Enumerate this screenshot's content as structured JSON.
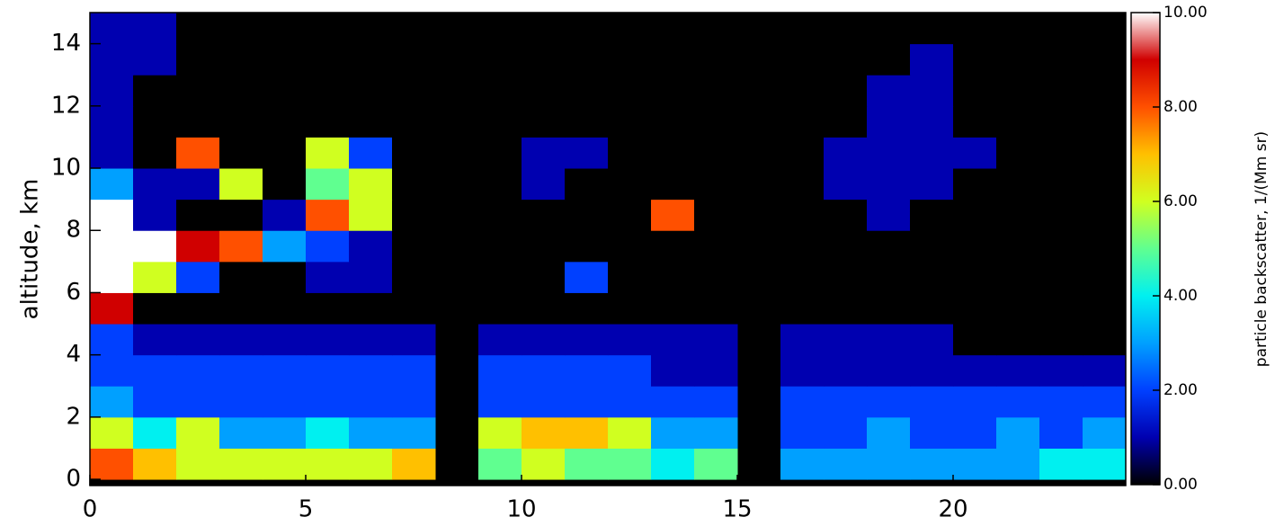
{
  "chart_data": {
    "type": "heatmap",
    "xlabel": null,
    "ylabel": "altitude, km",
    "colorbar_label": "particle backscatter, 1/(Mm sr)",
    "xbins": [
      0,
      1,
      2,
      3,
      4,
      5,
      6,
      7,
      8,
      9,
      10,
      11,
      12,
      13,
      14,
      15,
      16,
      17,
      18,
      19,
      20,
      21,
      22,
      23,
      24
    ],
    "ybins": [
      0,
      1,
      2,
      3,
      4,
      5,
      6,
      7,
      8,
      9,
      10,
      11,
      12,
      13,
      14,
      15
    ],
    "z": [
      [
        8,
        7,
        6,
        6,
        6,
        6,
        6,
        7,
        null,
        5,
        6,
        5,
        5,
        4,
        5,
        null,
        3,
        3,
        3,
        3,
        3,
        3,
        4,
        4
      ],
      [
        6,
        4,
        6,
        3,
        3,
        4,
        3,
        3,
        null,
        6,
        7,
        7,
        6,
        3,
        3,
        null,
        2,
        2,
        3,
        2,
        2,
        3,
        2,
        3
      ],
      [
        3,
        2,
        2,
        2,
        2,
        2,
        2,
        2,
        null,
        2,
        2,
        2,
        2,
        2,
        2,
        null,
        2,
        2,
        2,
        2,
        2,
        2,
        2,
        2
      ],
      [
        2,
        2,
        2,
        2,
        2,
        2,
        2,
        2,
        null,
        2,
        2,
        2,
        2,
        1,
        1,
        null,
        1,
        1,
        1,
        1,
        1,
        1,
        1,
        1
      ],
      [
        2,
        1,
        1,
        1,
        1,
        1,
        1,
        1,
        null,
        1,
        1,
        1,
        1,
        1,
        1,
        null,
        1,
        1,
        1,
        1,
        0,
        0,
        0,
        0
      ],
      [
        9,
        0,
        0,
        0,
        0,
        0,
        0,
        0,
        null,
        0,
        0,
        0,
        0,
        0,
        0,
        null,
        0,
        0,
        0,
        0,
        0,
        0,
        0,
        0
      ],
      [
        10,
        6,
        2,
        0,
        0,
        1,
        1,
        0,
        null,
        0,
        0,
        2,
        0,
        0,
        0,
        null,
        0,
        0,
        0,
        0,
        0,
        0,
        0,
        0
      ],
      [
        10,
        10,
        9,
        8,
        3,
        2,
        1,
        0,
        null,
        0,
        0,
        0,
        0,
        0,
        0,
        null,
        0,
        0,
        0,
        0,
        0,
        0,
        0,
        0
      ],
      [
        10,
        1,
        0,
        0,
        1,
        8,
        6,
        0,
        null,
        0,
        0,
        0,
        0,
        8,
        0,
        null,
        0,
        0,
        1,
        0,
        0,
        0,
        0,
        0
      ],
      [
        3,
        1,
        1,
        6,
        0,
        5,
        6,
        0,
        null,
        0,
        1,
        0,
        0,
        0,
        0,
        null,
        0,
        1,
        1,
        1,
        0,
        0,
        0,
        0
      ],
      [
        1,
        0,
        8,
        0,
        0,
        6,
        2,
        0,
        null,
        0,
        1,
        1,
        0,
        0,
        0,
        null,
        0,
        1,
        1,
        1,
        1,
        0,
        0,
        0
      ],
      [
        1,
        0,
        0,
        0,
        0,
        0,
        0,
        0,
        null,
        0,
        0,
        0,
        0,
        0,
        0,
        null,
        0,
        0,
        1,
        1,
        0,
        0,
        0,
        0
      ],
      [
        1,
        0,
        0,
        0,
        0,
        0,
        0,
        0,
        null,
        0,
        0,
        0,
        0,
        0,
        0,
        null,
        0,
        0,
        1,
        1,
        0,
        0,
        0,
        0
      ],
      [
        1,
        1,
        0,
        0,
        0,
        0,
        0,
        0,
        null,
        0,
        0,
        0,
        0,
        0,
        0,
        null,
        0,
        0,
        0,
        1,
        0,
        0,
        0,
        0
      ],
      [
        1,
        1,
        0,
        0,
        0,
        0,
        0,
        0,
        null,
        0,
        0,
        0,
        0,
        0,
        0,
        null,
        0,
        0,
        0,
        0,
        0,
        0,
        0,
        0
      ]
    ],
    "xlim": [
      0,
      24
    ],
    "ylim": [
      -0.2,
      15
    ],
    "xticks": [
      0,
      5,
      10,
      15,
      20
    ],
    "yticks": [
      0,
      2,
      4,
      6,
      8,
      10,
      12,
      14
    ],
    "zlim": [
      0,
      10
    ],
    "colorbar_ticks": [
      {
        "value": 0,
        "label": "0.00"
      },
      {
        "value": 2,
        "label": "2.00"
      },
      {
        "value": 4,
        "label": "4.00"
      },
      {
        "value": 6,
        "label": "6.00"
      },
      {
        "value": 8,
        "label": "8.00"
      },
      {
        "value": 10,
        "label": "10.00"
      }
    ],
    "colorscale": [
      "#000000",
      "#0000b0",
      "#0040ff",
      "#00a0ff",
      "#00f0f0",
      "#60ff90",
      "#d0ff20",
      "#ffc000",
      "#ff5000",
      "#d00000",
      "#ffffff"
    ],
    "background": "#000000"
  }
}
